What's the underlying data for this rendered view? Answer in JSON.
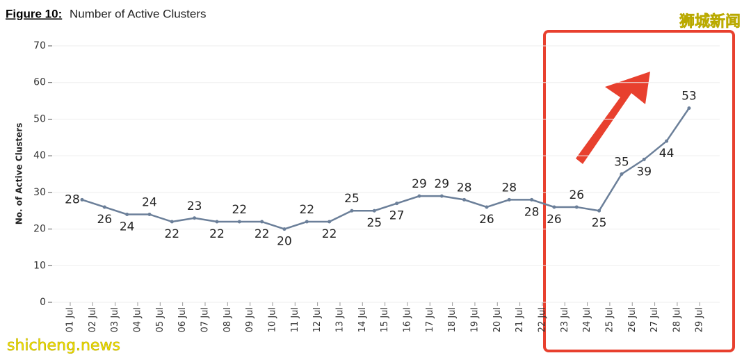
{
  "chart_data": {
    "type": "line",
    "title_prefix": "Figure 10:",
    "title": "Number of Active Clusters",
    "y_label": "No. of Active Clusters",
    "watermarks": [
      "狮城新闻",
      "shicheng.news"
    ],
    "categories": [
      "01 Jul",
      "02 Jul",
      "03 Jul",
      "04 Jul",
      "05 Jul",
      "06 Jul",
      "07 Jul",
      "08 Jul",
      "09 Jul",
      "10 Jul",
      "11 Jul",
      "12 Jul",
      "13 Jul",
      "14 Jul",
      "15 Jul",
      "16 Jul",
      "17 Jul",
      "18 Jul",
      "19 Jul",
      "20 Jul",
      "21 Jul",
      "22 Jul",
      "23 Jul",
      "24 Jul",
      "25 Jul",
      "26 Jul",
      "27 Jul",
      "28 Jul",
      "29 Jul"
    ],
    "series": [
      {
        "name": "Active Clusters",
        "color": "#6b7f99",
        "values": [
          28,
          26,
          24,
          24,
          22,
          23,
          22,
          22,
          22,
          20,
          22,
          22,
          25,
          25,
          27,
          29,
          29,
          28,
          26,
          28,
          28,
          26,
          26,
          25,
          35,
          39,
          44,
          53,
          null
        ]
      }
    ],
    "ylim": [
      0,
      70
    ],
    "yticks": [
      0,
      10,
      20,
      30,
      40,
      50,
      60,
      70
    ],
    "grid": true
  }
}
